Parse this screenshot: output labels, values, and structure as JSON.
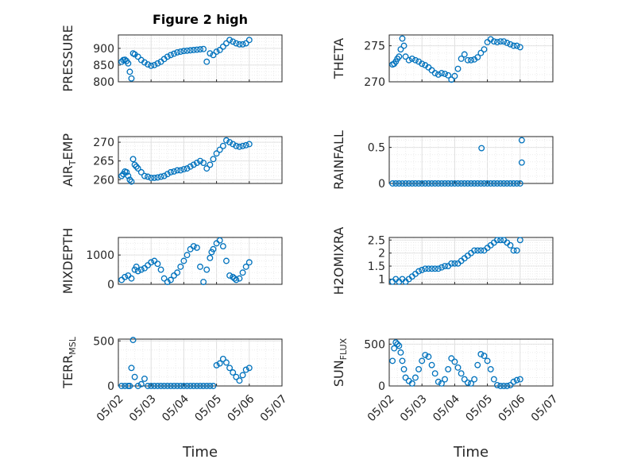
{
  "title": "Figure 2 high",
  "chart_data": [
    {
      "type": "scatter",
      "title": "Figure 2 high",
      "ylabel": "PRESSURE",
      "ylim": [
        800,
        940
      ],
      "yticks": [
        800,
        850,
        900
      ],
      "ytick_labels": [
        "800",
        "850",
        "900"
      ],
      "xlim": [
        0,
        5
      ],
      "x_tick_labels": [],
      "grid": true,
      "marker": "open-circle",
      "color": "#0072bd",
      "x": [
        0.1,
        0.15,
        0.2,
        0.25,
        0.3,
        0.35,
        0.4,
        0.45,
        0.5,
        0.6,
        0.7,
        0.8,
        0.9,
        1.0,
        1.1,
        1.2,
        1.3,
        1.4,
        1.5,
        1.6,
        1.7,
        1.8,
        1.9,
        2.0,
        2.1,
        2.2,
        2.3,
        2.4,
        2.5,
        2.6,
        2.7,
        2.8,
        2.9,
        3.0,
        3.1,
        3.2,
        3.3,
        3.4,
        3.5,
        3.6,
        3.7,
        3.8,
        3.9,
        4.0
      ],
      "y": [
        860,
        865,
        866,
        862,
        855,
        830,
        810,
        885,
        882,
        875,
        865,
        858,
        852,
        848,
        850,
        855,
        860,
        868,
        875,
        880,
        884,
        888,
        890,
        892,
        893,
        894,
        895,
        896,
        897,
        898,
        860,
        885,
        880,
        890,
        895,
        905,
        915,
        925,
        920,
        915,
        912,
        912,
        915,
        925
      ]
    },
    {
      "type": "scatter",
      "ylabel": "THETA",
      "ylim": [
        270,
        276.5
      ],
      "yticks": [
        270,
        275
      ],
      "ytick_labels": [
        "270",
        "275"
      ],
      "xlim": [
        0,
        5
      ],
      "x_tick_labels": [],
      "grid": true,
      "marker": "open-circle",
      "color": "#0072bd",
      "x": [
        0.1,
        0.15,
        0.2,
        0.25,
        0.3,
        0.35,
        0.4,
        0.45,
        0.5,
        0.6,
        0.7,
        0.8,
        0.9,
        1.0,
        1.1,
        1.2,
        1.3,
        1.4,
        1.5,
        1.6,
        1.7,
        1.8,
        1.9,
        2.0,
        2.1,
        2.2,
        2.3,
        2.4,
        2.5,
        2.6,
        2.7,
        2.8,
        2.9,
        3.0,
        3.1,
        3.2,
        3.3,
        3.4,
        3.5,
        3.6,
        3.7,
        3.8,
        3.9,
        4.0
      ],
      "y": [
        272.4,
        272.5,
        272.8,
        273.2,
        273.5,
        274.5,
        276.0,
        275.0,
        273.5,
        273.0,
        273.2,
        273.0,
        272.8,
        272.5,
        272.3,
        272.0,
        271.6,
        271.2,
        271.0,
        271.2,
        271.1,
        270.9,
        270.3,
        270.8,
        271.8,
        273.2,
        273.8,
        273.0,
        273.0,
        273.1,
        273.4,
        274.0,
        274.5,
        275.5,
        275.9,
        275.6,
        275.5,
        275.6,
        275.6,
        275.4,
        275.2,
        275.0,
        275.0,
        274.8
      ]
    },
    {
      "type": "scatter",
      "ylabel": "AIR_T_EMP",
      "ylim": [
        259,
        271.5
      ],
      "yticks": [
        260,
        265,
        270
      ],
      "ytick_labels": [
        "260",
        "265",
        "270"
      ],
      "xlim": [
        0,
        5
      ],
      "x_tick_labels": [],
      "grid": true,
      "marker": "open-circle",
      "color": "#0072bd",
      "x": [
        0.1,
        0.15,
        0.2,
        0.25,
        0.3,
        0.35,
        0.4,
        0.45,
        0.5,
        0.55,
        0.6,
        0.7,
        0.8,
        0.9,
        1.0,
        1.1,
        1.2,
        1.3,
        1.4,
        1.5,
        1.6,
        1.7,
        1.8,
        1.9,
        2.0,
        2.1,
        2.2,
        2.3,
        2.4,
        2.5,
        2.6,
        2.7,
        2.8,
        2.9,
        3.0,
        3.1,
        3.2,
        3.3,
        3.4,
        3.5,
        3.6,
        3.7,
        3.8,
        3.9,
        4.0
      ],
      "y": [
        261.0,
        261.5,
        262.2,
        262.0,
        261.0,
        260.0,
        259.5,
        265.5,
        264.0,
        263.5,
        263.0,
        262.0,
        261.0,
        260.8,
        260.5,
        260.5,
        260.6,
        260.8,
        261.0,
        261.5,
        262.0,
        262.2,
        262.5,
        262.5,
        262.8,
        263.0,
        263.5,
        264.0,
        264.5,
        265.0,
        264.5,
        263.0,
        264.0,
        265.5,
        267.0,
        268.0,
        269.0,
        270.5,
        270.0,
        269.5,
        269.0,
        268.8,
        269.0,
        269.2,
        269.5
      ]
    },
    {
      "type": "scatter",
      "ylabel": "RAINFALL",
      "ylim": [
        0,
        0.65
      ],
      "yticks": [
        0,
        0.5
      ],
      "ytick_labels": [
        "0",
        "0.5"
      ],
      "xlim": [
        0,
        5
      ],
      "x_tick_labels": [],
      "grid": true,
      "marker": "open-circle",
      "color": "#0072bd",
      "x": [
        0.1,
        0.2,
        0.3,
        0.4,
        0.5,
        0.6,
        0.7,
        0.8,
        0.9,
        1.0,
        1.1,
        1.2,
        1.3,
        1.4,
        1.5,
        1.6,
        1.7,
        1.8,
        1.9,
        2.0,
        2.1,
        2.2,
        2.3,
        2.4,
        2.5,
        2.6,
        2.7,
        2.8,
        2.9,
        3.0,
        3.1,
        3.2,
        3.3,
        3.4,
        3.5,
        3.6,
        3.7,
        3.8,
        3.9,
        4.0,
        2.82,
        4.05,
        4.05
      ],
      "y": [
        0,
        0,
        0,
        0,
        0,
        0,
        0,
        0,
        0,
        0,
        0,
        0,
        0,
        0,
        0,
        0,
        0,
        0,
        0,
        0,
        0,
        0,
        0,
        0,
        0,
        0,
        0,
        0,
        0,
        0,
        0,
        0,
        0,
        0,
        0,
        0,
        0,
        0,
        0,
        0,
        0.49,
        0.6,
        0.29
      ]
    },
    {
      "type": "scatter",
      "ylabel": "MIXDEPTH",
      "ylim": [
        0,
        1600
      ],
      "yticks": [
        0,
        1000
      ],
      "ytick_labels": [
        "0",
        "1000"
      ],
      "xlim": [
        0,
        5
      ],
      "x_tick_labels": [],
      "grid": true,
      "marker": "open-circle",
      "color": "#0072bd",
      "x": [
        0.1,
        0.2,
        0.3,
        0.4,
        0.5,
        0.55,
        0.6,
        0.7,
        0.8,
        0.9,
        1.0,
        1.1,
        1.2,
        1.3,
        1.4,
        1.5,
        1.6,
        1.7,
        1.8,
        1.9,
        2.0,
        2.1,
        2.2,
        2.3,
        2.4,
        2.5,
        2.6,
        2.7,
        2.8,
        2.85,
        2.9,
        3.0,
        3.1,
        3.2,
        3.3,
        3.4,
        3.5,
        3.55,
        3.6,
        3.7,
        3.8,
        3.9,
        4.0
      ],
      "y": [
        150,
        250,
        300,
        200,
        500,
        600,
        450,
        500,
        550,
        650,
        750,
        800,
        700,
        500,
        200,
        80,
        150,
        300,
        400,
        600,
        800,
        1000,
        1200,
        1300,
        1250,
        600,
        80,
        500,
        900,
        1100,
        1200,
        1400,
        1500,
        1300,
        800,
        300,
        250,
        200,
        150,
        200,
        400,
        600,
        750
      ]
    },
    {
      "type": "scatter",
      "ylabel": "H2OMIXRA",
      "ylim": [
        0.8,
        2.6
      ],
      "yticks": [
        1,
        1.5,
        2,
        2.5
      ],
      "ytick_labels": [
        "1",
        "1.5",
        "2",
        "2.5"
      ],
      "xlim": [
        0,
        5
      ],
      "x_tick_labels": [],
      "grid": true,
      "marker": "open-circle",
      "color": "#0072bd",
      "x": [
        0.1,
        0.2,
        0.3,
        0.4,
        0.5,
        0.6,
        0.7,
        0.8,
        0.9,
        1.0,
        1.1,
        1.2,
        1.3,
        1.4,
        1.5,
        1.6,
        1.7,
        1.8,
        1.9,
        2.0,
        2.1,
        2.2,
        2.3,
        2.4,
        2.5,
        2.6,
        2.7,
        2.8,
        2.9,
        3.0,
        3.1,
        3.2,
        3.3,
        3.4,
        3.5,
        3.6,
        3.7,
        3.8,
        3.9,
        4.0
      ],
      "y": [
        0.9,
        1.0,
        0.9,
        1.0,
        0.9,
        1.0,
        1.1,
        1.2,
        1.3,
        1.35,
        1.4,
        1.4,
        1.4,
        1.4,
        1.4,
        1.45,
        1.5,
        1.5,
        1.6,
        1.6,
        1.6,
        1.7,
        1.8,
        1.9,
        2.0,
        2.1,
        2.1,
        2.1,
        2.1,
        2.2,
        2.3,
        2.4,
        2.5,
        2.5,
        2.5,
        2.4,
        2.3,
        2.1,
        2.1,
        2.5
      ]
    },
    {
      "type": "scatter",
      "ylabel": "TERR_MSL",
      "ylim": [
        0,
        520
      ],
      "yticks": [
        0,
        500
      ],
      "ytick_labels": [
        "0",
        "500"
      ],
      "xlim": [
        0,
        5
      ],
      "x_tick_labels": [
        "05/02",
        "05/03",
        "05/04",
        "05/05",
        "05/06",
        "05/07"
      ],
      "xlabel": "Time",
      "grid": true,
      "marker": "open-circle",
      "color": "#0072bd",
      "x": [
        0.1,
        0.2,
        0.3,
        0.35,
        0.4,
        0.45,
        0.5,
        0.6,
        0.7,
        0.8,
        0.9,
        1.0,
        1.1,
        1.2,
        1.3,
        1.4,
        1.5,
        1.6,
        1.7,
        1.8,
        1.9,
        2.0,
        2.1,
        2.2,
        2.3,
        2.4,
        2.5,
        2.6,
        2.7,
        2.8,
        2.9,
        3.0,
        3.1,
        3.2,
        3.3,
        3.4,
        3.5,
        3.6,
        3.7,
        3.8,
        3.9,
        4.0
      ],
      "y": [
        0,
        0,
        0,
        0,
        200,
        510,
        100,
        0,
        20,
        80,
        0,
        0,
        0,
        0,
        0,
        0,
        0,
        0,
        0,
        0,
        0,
        0,
        0,
        0,
        0,
        0,
        0,
        0,
        0,
        0,
        0,
        230,
        250,
        300,
        260,
        200,
        150,
        100,
        60,
        120,
        180,
        200
      ]
    },
    {
      "type": "scatter",
      "ylabel": "SUN_FLUX",
      "ylim": [
        0,
        560
      ],
      "yticks": [
        0,
        500
      ],
      "ytick_labels": [
        "0",
        "500"
      ],
      "xlim": [
        0,
        5
      ],
      "x_tick_labels": [
        "05/02",
        "05/03",
        "05/04",
        "05/05",
        "05/06",
        "05/07"
      ],
      "xlabel": "Time",
      "grid": true,
      "marker": "open-circle",
      "color": "#0072bd",
      "x": [
        0.1,
        0.15,
        0.2,
        0.25,
        0.3,
        0.35,
        0.4,
        0.45,
        0.5,
        0.6,
        0.7,
        0.8,
        0.9,
        1.0,
        1.1,
        1.2,
        1.3,
        1.4,
        1.5,
        1.6,
        1.7,
        1.8,
        1.9,
        2.0,
        2.1,
        2.2,
        2.3,
        2.4,
        2.5,
        2.6,
        2.7,
        2.8,
        2.9,
        3.0,
        3.1,
        3.2,
        3.3,
        3.4,
        3.5,
        3.6,
        3.7,
        3.8,
        3.9,
        4.0
      ],
      "y": [
        300,
        450,
        520,
        500,
        480,
        400,
        300,
        200,
        100,
        60,
        30,
        100,
        200,
        300,
        370,
        350,
        250,
        150,
        50,
        30,
        80,
        200,
        330,
        290,
        220,
        150,
        80,
        40,
        30,
        80,
        250,
        380,
        360,
        300,
        200,
        80,
        10,
        0,
        0,
        0,
        10,
        50,
        70,
        80
      ]
    }
  ]
}
